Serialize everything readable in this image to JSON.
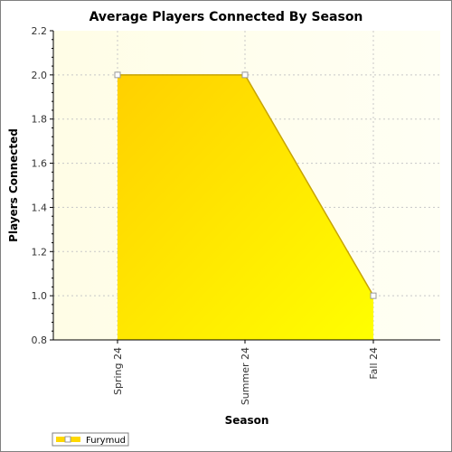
{
  "chart_data": {
    "type": "area",
    "title": "Average Players Connected By Season",
    "xlabel": "Season",
    "ylabel": "Players Connected",
    "categories": [
      "Spring 24",
      "Summer 24",
      "Fall 24"
    ],
    "series": [
      {
        "name": "Furymud",
        "values": [
          2.0,
          2.0,
          1.0
        ]
      }
    ],
    "ylim": [
      0.8,
      2.2
    ],
    "yticks": [
      "0.8",
      "1.0",
      "1.2",
      "1.4",
      "1.6",
      "1.8",
      "2.0",
      "2.2"
    ],
    "grid": true,
    "legend_position": "bottom-left"
  },
  "colors": {
    "plot_background_light": "#fffff0",
    "plot_background_mid": "#fffde0",
    "area_fill_top": "#ffd000",
    "area_fill_bottom": "#ffff00",
    "area_line": "#c8a400",
    "marker_fill": "#ffffff",
    "marker_stroke": "#999999",
    "gridline": "#c8c8c8"
  }
}
